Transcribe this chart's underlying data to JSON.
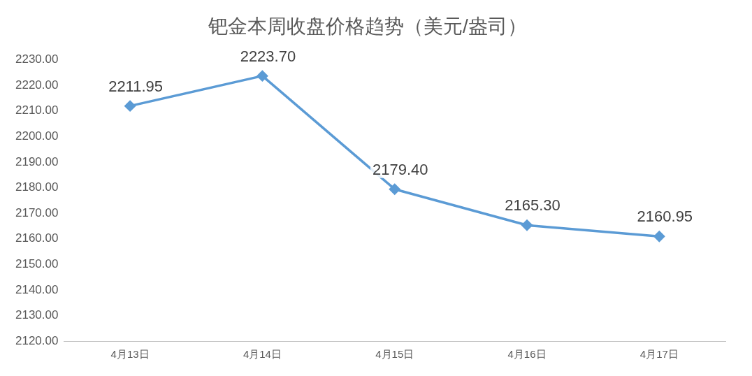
{
  "chart_data": {
    "type": "line",
    "title": "钯金本周收盘价格趋势（美元/盎司）",
    "categories": [
      "4月13日",
      "4月14日",
      "4月15日",
      "4月16日",
      "4月17日"
    ],
    "series": [
      {
        "color": "#5b9bd5",
        "values": [
          2211.95,
          2223.7,
          2179.4,
          2165.3,
          2160.95
        ]
      }
    ],
    "ylim": [
      2120,
      2230
    ],
    "yticks": [
      {
        "value": 2120,
        "label": "2120.00"
      },
      {
        "value": 2130,
        "label": "2130.00"
      },
      {
        "value": 2140,
        "label": "2140.00"
      },
      {
        "value": 2150,
        "label": "2150.00"
      },
      {
        "value": 2160,
        "label": "2160.00"
      },
      {
        "value": 2170,
        "label": "2170.00"
      },
      {
        "value": 2180,
        "label": "2180.00"
      },
      {
        "value": 2190,
        "label": "2190.00"
      },
      {
        "value": 2200,
        "label": "2200.00"
      },
      {
        "value": 2210,
        "label": "2210.00"
      },
      {
        "value": 2220,
        "label": "2220.00"
      },
      {
        "value": 2230,
        "label": "2230.00"
      }
    ],
    "value_labels": [
      "2211.95",
      "2223.70",
      "2179.40",
      "2165.30",
      "2160.95"
    ],
    "marker": "diamond",
    "line_style": "solid",
    "grid": false,
    "legend": false
  }
}
